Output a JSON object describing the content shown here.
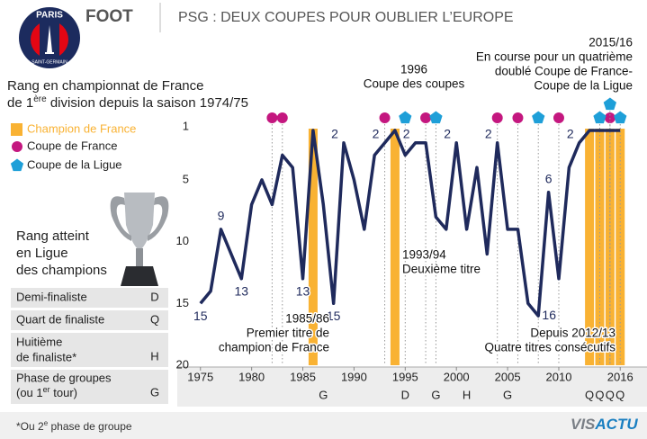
{
  "header": {
    "logo_top": "PARIS",
    "logo_bottom": "SAINT-GERMAIN",
    "section": "FOOT",
    "title": "PSG : DEUX COUPES POUR OUBLIER L’EUROPE"
  },
  "chart_data": {
    "type": "line",
    "title": {
      "line1": "Rang en championnat de France",
      "line2_start": "de 1",
      "line2_sup": "ère",
      "line2_end": " division depuis la saison 1974/75"
    },
    "x": [
      1975,
      1976,
      1977,
      1978,
      1979,
      1980,
      1981,
      1982,
      1983,
      1984,
      1985,
      1986,
      1987,
      1988,
      1989,
      1990,
      1991,
      1992,
      1993,
      1994,
      1995,
      1996,
      1997,
      1998,
      1999,
      2000,
      2001,
      2002,
      2003,
      2004,
      2005,
      2006,
      2007,
      2008,
      2009,
      2010,
      2011,
      2012,
      2013,
      2014,
      2015,
      2016
    ],
    "values": [
      15,
      14,
      9,
      11,
      13,
      7,
      5,
      7,
      3,
      4,
      13,
      1,
      7,
      15,
      2,
      5,
      9,
      3,
      2,
      1,
      3,
      2,
      2,
      8,
      9,
      2,
      9,
      4,
      11,
      2,
      9,
      9,
      15,
      16,
      6,
      13,
      4,
      2,
      1,
      1,
      1,
      1
    ],
    "value_labels": [
      "15",
      null,
      "9",
      null,
      "13",
      null,
      null,
      null,
      null,
      null,
      "13",
      null,
      null,
      "15",
      "2",
      null,
      null,
      null,
      "2",
      null,
      null,
      "2",
      null,
      null,
      null,
      "2",
      null,
      null,
      null,
      "2",
      null,
      null,
      null,
      "16",
      "6",
      null,
      null,
      "2",
      null,
      null,
      null,
      null
    ],
    "color": "#1f2a5c",
    "xlim": [
      1973,
      2018
    ],
    "xticks": [
      1975,
      1980,
      1985,
      1990,
      1995,
      2000,
      2005,
      2010,
      2016
    ],
    "ylim": [
      1,
      20
    ],
    "y_inverted": true,
    "yticks": [
      1,
      5,
      10,
      15,
      20
    ],
    "markers": [
      {
        "name": "Champion de France",
        "shape": "bar",
        "color": "#f9b233",
        "x": [
          1986,
          1994,
          2013,
          2014,
          2015,
          2016
        ]
      },
      {
        "name": "Coupe de France",
        "shape": "circle",
        "color": "#c4177f",
        "x": [
          1982,
          1983,
          1993,
          1997,
          2004,
          2006,
          2010,
          2015
        ]
      },
      {
        "name": "Coupe de la Ligue",
        "shape": "pentagon",
        "color": "#1e9fd8",
        "x": [
          1995,
          1998,
          2008,
          2014,
          2015,
          2016
        ]
      }
    ],
    "annotations": [
      [
        "1985/86",
        "Premier titre de",
        "champion de France"
      ],
      [
        "1993/94",
        "Deuxième titre"
      ],
      [
        "1996",
        "Coupe des coupes"
      ],
      [
        "2015/16",
        "En course pour un quatrième",
        "doublé Coupe de France-",
        "Coupe de la Ligue"
      ],
      [
        "Depuis 2012/13",
        "Quatre titres consécutifs"
      ]
    ],
    "champions_league": {
      "title": [
        "Rang atteint",
        "en Ligue",
        "des champions"
      ],
      "legend": [
        {
          "label": [
            "Demi-finaliste"
          ],
          "code": "D"
        },
        {
          "label": [
            "Quart de finaliste"
          ],
          "code": "Q"
        },
        {
          "label": [
            "Huitième",
            "de finaliste*"
          ],
          "code": "H"
        },
        {
          "label": [
            "Phase de groupes",
            "(ou 1",
            "er",
            " tour)"
          ],
          "code": "G"
        }
      ],
      "x": [
        1987,
        1995,
        1998,
        2001,
        2005,
        2013,
        2014,
        2015,
        2016
      ],
      "codes": [
        "G",
        "D",
        "G",
        "H",
        "G",
        "Q",
        "Q",
        "Q",
        "Q"
      ]
    }
  },
  "footer": {
    "note_start": "*Ou 2",
    "note_sup": "e",
    "note_end": " phase de groupe",
    "brand_1": "VIS",
    "brand_2": "ACTU"
  }
}
